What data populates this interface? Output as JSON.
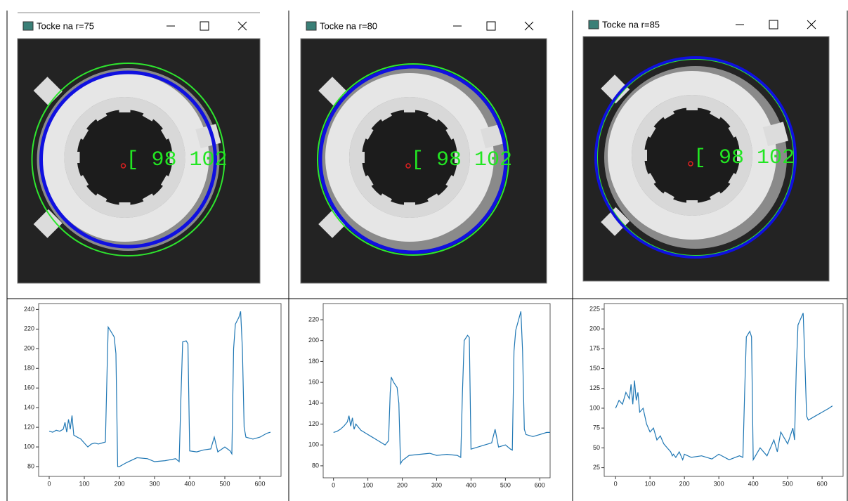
{
  "windows": [
    {
      "title": "Tocke na r=75",
      "overlay": "[ 98 102"
    },
    {
      "title": "Tocke na r=80",
      "overlay": "[ 98 102"
    },
    {
      "title": "Tocke na r=85",
      "overlay": "[ 98 102"
    }
  ],
  "chart_data": [
    {
      "type": "line",
      "color": "#1f77b4",
      "x": [
        0,
        10,
        20,
        30,
        40,
        45,
        50,
        55,
        60,
        65,
        70,
        80,
        90,
        100,
        110,
        120,
        130,
        140,
        150,
        160,
        165,
        168,
        175,
        185,
        190,
        195,
        200,
        220,
        250,
        280,
        300,
        330,
        360,
        370,
        375,
        380,
        390,
        395,
        400,
        420,
        440,
        460,
        470,
        480,
        500,
        515,
        520,
        525,
        530,
        540,
        545,
        550,
        555,
        560,
        580,
        600,
        620,
        630
      ],
      "values": [
        116,
        115,
        117,
        116,
        118,
        125,
        115,
        128,
        118,
        132,
        112,
        110,
        108,
        104,
        100,
        103,
        104,
        103,
        104,
        105,
        180,
        222,
        218,
        212,
        195,
        80,
        80,
        84,
        89,
        88,
        85,
        86,
        88,
        85,
        150,
        207,
        208,
        205,
        96,
        95,
        97,
        98,
        110,
        95,
        100,
        96,
        93,
        200,
        225,
        232,
        238,
        200,
        120,
        110,
        108,
        110,
        114,
        115
      ],
      "xlim": [
        -30,
        660
      ],
      "ylim": [
        70,
        246
      ],
      "xticks": [
        0,
        100,
        200,
        300,
        400,
        500,
        600
      ],
      "yticks": [
        80,
        100,
        120,
        140,
        160,
        180,
        200,
        220,
        240
      ]
    },
    {
      "type": "line",
      "color": "#1f77b4",
      "x": [
        0,
        10,
        20,
        30,
        40,
        45,
        50,
        55,
        60,
        65,
        70,
        80,
        90,
        100,
        110,
        120,
        130,
        140,
        150,
        160,
        165,
        168,
        175,
        185,
        190,
        195,
        200,
        220,
        250,
        280,
        300,
        330,
        360,
        370,
        375,
        380,
        390,
        395,
        400,
        420,
        440,
        460,
        470,
        480,
        500,
        515,
        520,
        525,
        530,
        540,
        545,
        550,
        555,
        560,
        580,
        600,
        620,
        630
      ],
      "values": [
        112,
        113,
        115,
        118,
        122,
        128,
        118,
        126,
        115,
        120,
        118,
        114,
        112,
        110,
        108,
        106,
        104,
        102,
        100,
        104,
        150,
        165,
        160,
        155,
        140,
        82,
        85,
        90,
        91,
        92,
        90,
        91,
        90,
        88,
        150,
        200,
        205,
        203,
        96,
        98,
        100,
        102,
        115,
        98,
        100,
        96,
        95,
        190,
        210,
        222,
        228,
        190,
        115,
        110,
        108,
        110,
        112,
        112
      ],
      "xlim": [
        -30,
        630
      ],
      "ylim": [
        68.5,
        235.5
      ],
      "xticks": [
        0,
        100,
        200,
        300,
        400,
        500,
        600
      ],
      "yticks": [
        80,
        100,
        120,
        140,
        160,
        180,
        200,
        220
      ]
    },
    {
      "type": "line",
      "color": "#1f77b4",
      "x": [
        0,
        10,
        20,
        30,
        40,
        45,
        50,
        55,
        60,
        65,
        70,
        80,
        90,
        100,
        110,
        120,
        130,
        140,
        150,
        160,
        165,
        168,
        175,
        185,
        190,
        195,
        200,
        220,
        250,
        280,
        300,
        330,
        360,
        370,
        375,
        380,
        390,
        395,
        400,
        420,
        440,
        460,
        470,
        480,
        500,
        515,
        520,
        525,
        530,
        540,
        545,
        550,
        555,
        560,
        580,
        600,
        620,
        630
      ],
      "values": [
        100,
        110,
        105,
        120,
        112,
        130,
        105,
        135,
        110,
        120,
        95,
        100,
        80,
        70,
        75,
        60,
        65,
        55,
        50,
        45,
        40,
        42,
        38,
        45,
        40,
        35,
        42,
        38,
        40,
        36,
        42,
        35,
        40,
        38,
        120,
        190,
        197,
        190,
        35,
        50,
        40,
        60,
        45,
        70,
        55,
        75,
        60,
        150,
        205,
        215,
        220,
        160,
        90,
        85,
        90,
        95,
        100,
        103
      ],
      "xlim": [
        -33,
        661
      ],
      "ylim": [
        14,
        232
      ],
      "xticks": [
        0,
        100,
        200,
        300,
        400,
        500,
        600
      ],
      "yticks": [
        25,
        50,
        75,
        100,
        125,
        150,
        175,
        200,
        225
      ]
    }
  ]
}
